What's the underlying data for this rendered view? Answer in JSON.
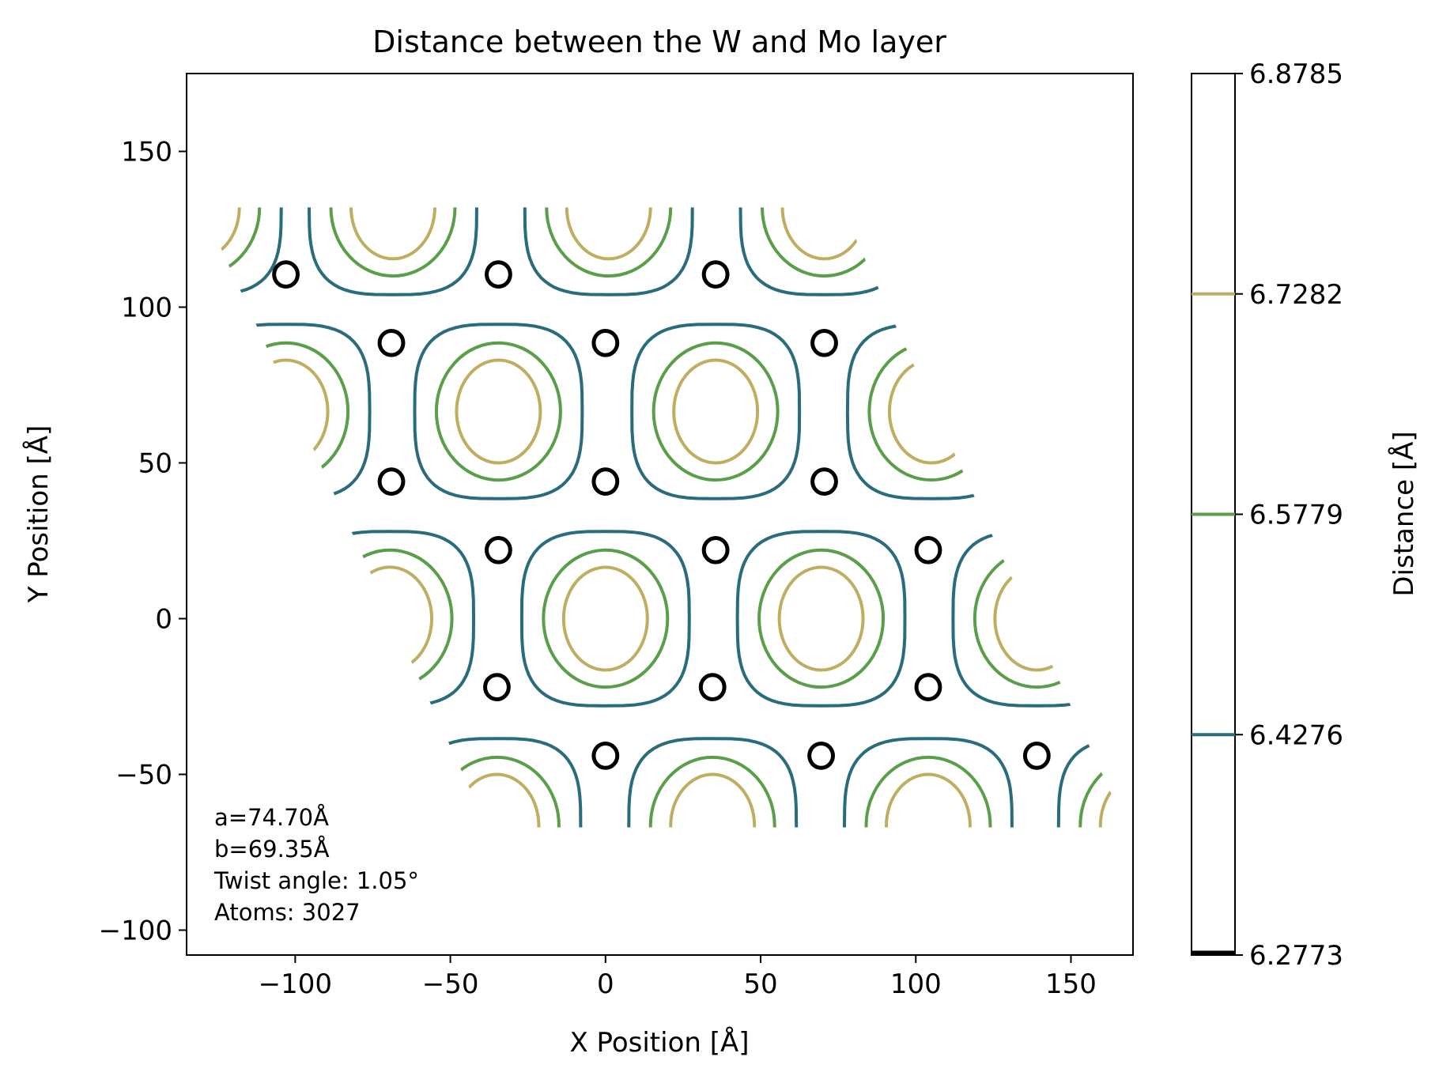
{
  "chart_data": {
    "type": "contour",
    "title": "Distance between the W and Mo layer",
    "xlabel": "X Position [Å]",
    "ylabel": "Y Position [Å]",
    "xlim": [
      -135,
      170
    ],
    "ylim": [
      -108,
      175
    ],
    "xticks": [
      -100,
      -50,
      0,
      50,
      100,
      150
    ],
    "yticks": [
      -100,
      -50,
      0,
      50,
      100,
      150
    ],
    "xtick_labels": [
      "−100",
      "−50",
      "0",
      "50",
      "100",
      "150"
    ],
    "ytick_labels": [
      "−100",
      "−50",
      "0",
      "50",
      "100",
      "150"
    ],
    "grid": false,
    "cell": {
      "corners": [
        [
          -130,
          132
        ],
        [
          76,
          132
        ],
        [
          168,
          -67
        ],
        [
          -38,
          -67
        ]
      ]
    },
    "colorbar": {
      "label": "Distance [Å]",
      "range": [
        6.2773,
        6.8785
      ],
      "ticks": [
        "6.2773",
        "6.4276",
        "6.5779",
        "6.7282",
        "6.8785"
      ],
      "levels": [
        {
          "value": 6.2773,
          "color": "#000000"
        },
        {
          "value": 6.4276,
          "color": "#2a6b7c"
        },
        {
          "value": 6.5779,
          "color": "#5a9e4a"
        },
        {
          "value": 6.7282,
          "color": "#bfae62"
        }
      ]
    },
    "contour_rings": {
      "levels": [
        "6.4276",
        "6.5779",
        "6.7282"
      ],
      "radii_x": [
        27,
        20,
        13.5
      ],
      "radii_y": [
        28,
        22,
        16.5
      ]
    },
    "maxima_centers": [
      [
        -34.5,
        66.5
      ],
      [
        35.5,
        66.5
      ],
      [
        0,
        0
      ],
      [
        69.5,
        0
      ],
      [
        -103,
        66.5
      ],
      [
        105,
        66.5
      ],
      [
        -69.5,
        0
      ],
      [
        139,
        0
      ],
      [
        -68.5,
        132
      ],
      [
        1,
        132
      ],
      [
        70.5,
        132
      ],
      [
        -131.5,
        132
      ],
      [
        -35,
        -66.5
      ],
      [
        34.5,
        -66.5
      ],
      [
        104,
        -66.5
      ],
      [
        173,
        -66.5
      ]
    ],
    "minima_centers": [
      [
        -103,
        110.5
      ],
      [
        -34.5,
        110.5
      ],
      [
        35.5,
        110.5
      ],
      [
        -69,
        88.5
      ],
      [
        0,
        88.5
      ],
      [
        70.5,
        88.5
      ],
      [
        -69,
        44
      ],
      [
        0,
        44
      ],
      [
        70.5,
        44
      ],
      [
        -34.5,
        22
      ],
      [
        35.5,
        22
      ],
      [
        104,
        22
      ],
      [
        -35,
        -22
      ],
      [
        34.5,
        -22
      ],
      [
        104,
        -22
      ],
      [
        0,
        -44
      ],
      [
        69.5,
        -44
      ],
      [
        139,
        -44
      ]
    ],
    "minima_radius": [
      3.8,
      3.9
    ],
    "annotation": [
      "a=74.70Å",
      "b=69.35Å",
      "Twist angle: 1.05°",
      "Atoms: 3027"
    ]
  }
}
